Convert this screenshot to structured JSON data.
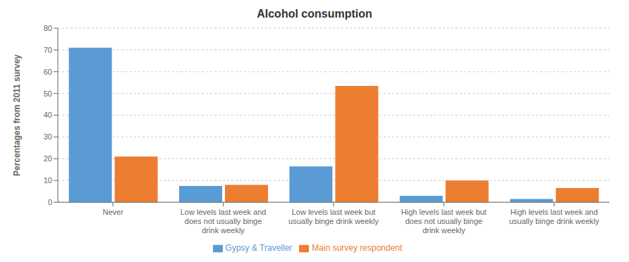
{
  "chart_data": {
    "type": "bar",
    "title": "Alcohol consumption",
    "ylabel": "Percentages from 2011 survey",
    "categories": [
      "Never",
      "Low levels last week and\ndoes not usually binge\ndrink weekly",
      "Low levels last week but\nusually binge drink weekly",
      "High levels last week but\ndoes not usually binge\ndrink weekly",
      "High levels last week and\nusually binge drink weekly"
    ],
    "series": [
      {
        "name": "Gypsy & Traveller",
        "color": "#5B9BD5",
        "values": [
          71,
          7.5,
          16.5,
          3,
          1.5
        ]
      },
      {
        "name": "Main survey respondent",
        "color": "#ED7D31",
        "values": [
          21,
          8,
          53.5,
          10,
          6.5
        ]
      }
    ],
    "ylim": [
      0,
      80
    ],
    "yticks": [
      0,
      10,
      20,
      30,
      40,
      50,
      60,
      70,
      80
    ],
    "grid": true,
    "legend": "bottom"
  }
}
